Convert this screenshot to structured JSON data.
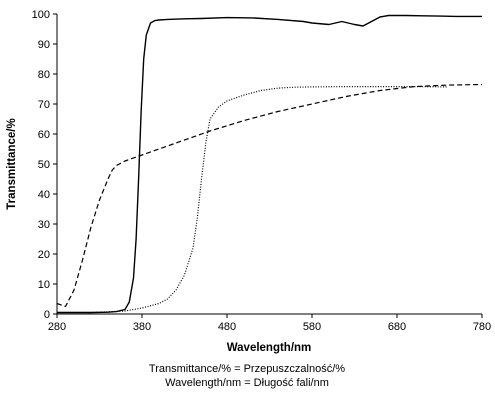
{
  "chart_data": {
    "type": "line",
    "xlabel": "Wavelength/nm",
    "ylabel": "Transmittance/%",
    "xlim": [
      280,
      780
    ],
    "ylim": [
      0,
      100
    ],
    "xticks": [
      280,
      380,
      480,
      580,
      680,
      780
    ],
    "yticks": [
      0,
      10,
      20,
      30,
      40,
      50,
      60,
      70,
      80,
      90,
      100
    ],
    "grid": false,
    "legend": "none",
    "footnotes": [
      "Transmittance/% = Przepuszczalność/%",
      "Wavelength/nm = Długość fali/nm"
    ],
    "series": [
      {
        "style": "solid",
        "color": "#000000",
        "x": [
          280,
          300,
          320,
          340,
          350,
          360,
          365,
          370,
          373,
          376,
          379,
          382,
          385,
          390,
          395,
          400,
          410,
          430,
          450,
          480,
          510,
          540,
          570,
          580,
          600,
          615,
          630,
          640,
          650,
          660,
          670,
          690,
          710,
          730,
          750,
          770,
          780
        ],
        "y": [
          0.5,
          0.5,
          0.5,
          0.6,
          0.8,
          1.5,
          4,
          12,
          25,
          45,
          68,
          85,
          93,
          97,
          97.8,
          98,
          98.2,
          98.4,
          98.5,
          98.8,
          98.7,
          98.2,
          97.5,
          97,
          96.5,
          97.5,
          96.5,
          96,
          97.5,
          99,
          99.5,
          99.5,
          99.4,
          99.3,
          99.2,
          99.2,
          99.2
        ]
      },
      {
        "style": "dotted",
        "color": "#000000",
        "x": [
          280,
          320,
          360,
          380,
          400,
          410,
          420,
          430,
          440,
          445,
          450,
          455,
          460,
          470,
          480,
          500,
          520,
          540,
          560,
          580,
          620,
          660,
          700,
          740
        ],
        "y": [
          0.5,
          0.5,
          1,
          2,
          3.5,
          5,
          8,
          13,
          22,
          32,
          45,
          57,
          65,
          69,
          71,
          73,
          74.5,
          75.3,
          75.6,
          75.7,
          75.8,
          75.8,
          75.8,
          75.7
        ]
      },
      {
        "style": "dashed",
        "color": "#000000",
        "x": [
          280,
          290,
          300,
          310,
          320,
          330,
          340,
          345,
          350,
          360,
          380,
          400,
          430,
          460,
          500,
          540,
          580,
          620,
          660,
          700,
          740,
          780
        ],
        "y": [
          3.5,
          2.5,
          8,
          18,
          29,
          38,
          45,
          48,
          49.5,
          51,
          53,
          55,
          58,
          61,
          64.5,
          67.5,
          70,
          72.5,
          74.5,
          75.8,
          76.3,
          76.5
        ]
      }
    ]
  }
}
